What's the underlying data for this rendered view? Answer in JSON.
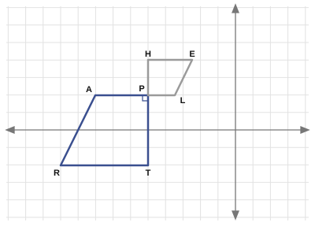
{
  "points": {
    "A": "A",
    "P": "P",
    "H": "H",
    "E": "E",
    "L": "L",
    "R": "R",
    "T": "T"
  }
}
